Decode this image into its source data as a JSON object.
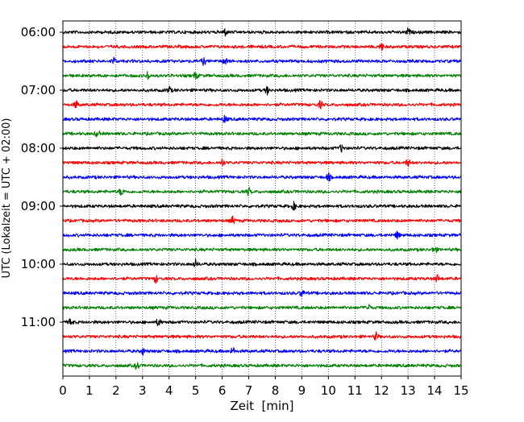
{
  "chart_data": {
    "type": "line",
    "title": "",
    "xlabel": "Zeit  [min]",
    "ylabel": "UTC (Lokalzeit = UTC + 02:00)",
    "xlim": [
      0,
      15
    ],
    "x_ticks": [
      0,
      1,
      2,
      3,
      4,
      5,
      6,
      7,
      8,
      9,
      10,
      11,
      12,
      13,
      14,
      15
    ],
    "x_tick_labels": [
      "0",
      "1",
      "2",
      "3",
      "4",
      "5",
      "6",
      "7",
      "8",
      "9",
      "10",
      "11",
      "12",
      "13",
      "14",
      "15"
    ],
    "y_tick_labels": [
      "06:00",
      "07:00",
      "08:00",
      "09:00",
      "10:00",
      "11:00"
    ],
    "grid": "vertical dotted",
    "legend": "none",
    "trace_colors": [
      "#000000",
      "#ff0000",
      "#0000ff",
      "#008000"
    ],
    "series": [
      {
        "start": "06:00",
        "color": "#000000",
        "events_min": [
          6.1,
          13.0
        ]
      },
      {
        "start": "06:15",
        "color": "#ff0000",
        "events_min": [
          12.0
        ]
      },
      {
        "start": "06:30",
        "color": "#0000ff",
        "events_min": [
          1.9,
          5.3,
          6.1
        ]
      },
      {
        "start": "06:45",
        "color": "#008000",
        "events_min": [
          3.2,
          5.0
        ]
      },
      {
        "start": "07:00",
        "color": "#000000",
        "events_min": [
          4.0,
          7.7
        ]
      },
      {
        "start": "07:15",
        "color": "#ff0000",
        "events_min": [
          0.5,
          9.7
        ]
      },
      {
        "start": "07:30",
        "color": "#0000ff",
        "events_min": [
          6.1
        ]
      },
      {
        "start": "07:45",
        "color": "#008000",
        "events_min": [
          1.3
        ]
      },
      {
        "start": "08:00",
        "color": "#000000",
        "events_min": [
          10.5
        ]
      },
      {
        "start": "08:15",
        "color": "#ff0000",
        "events_min": [
          6.0,
          13.0
        ]
      },
      {
        "start": "08:30",
        "color": "#0000ff",
        "events_min": [
          10.0
        ]
      },
      {
        "start": "08:45",
        "color": "#008000",
        "events_min": [
          2.2,
          7.0
        ]
      },
      {
        "start": "09:00",
        "color": "#000000",
        "events_min": [
          8.7
        ]
      },
      {
        "start": "09:15",
        "color": "#ff0000",
        "events_min": [
          6.4
        ]
      },
      {
        "start": "09:30",
        "color": "#0000ff",
        "events_min": [
          12.6
        ]
      },
      {
        "start": "09:45",
        "color": "#008000",
        "events_min": [
          14.0
        ]
      },
      {
        "start": "10:00",
        "color": "#000000",
        "events_min": [
          5.0
        ]
      },
      {
        "start": "10:15",
        "color": "#ff0000",
        "events_min": [
          3.5,
          14.1
        ]
      },
      {
        "start": "10:30",
        "color": "#0000ff",
        "events_min": [
          9.0
        ]
      },
      {
        "start": "10:45",
        "color": "#008000",
        "events_min": [
          11.5
        ]
      },
      {
        "start": "11:00",
        "color": "#000000",
        "events_min": [
          0.3,
          3.6
        ]
      },
      {
        "start": "11:15",
        "color": "#ff0000",
        "events_min": [
          11.8
        ]
      },
      {
        "start": "11:30",
        "color": "#0000ff",
        "events_min": [
          3.0,
          6.4
        ]
      },
      {
        "start": "11:45",
        "color": "#008000",
        "events_min": [
          2.8
        ]
      }
    ]
  }
}
